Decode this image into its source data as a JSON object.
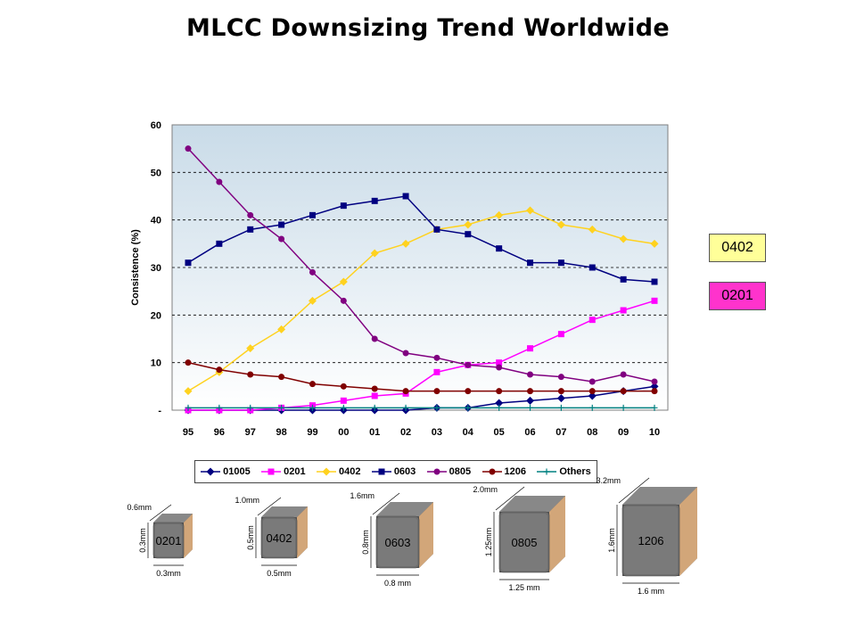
{
  "title": "MLCC Downsizing Trend Worldwide",
  "callouts": {
    "c0402": "0402",
    "c0201": "0201"
  },
  "colors": {
    "c0402": "#ffff99",
    "c0201": "#ff33cc"
  },
  "chart_data": {
    "type": "line",
    "ylabel": "Consistence   (%)",
    "ylim": [
      0,
      60
    ],
    "yticks": [
      "-",
      "10",
      "20",
      "30",
      "40",
      "50",
      "60"
    ],
    "categories": [
      "95",
      "96",
      "97",
      "98",
      "99",
      "00",
      "01",
      "02",
      "03",
      "04",
      "05",
      "06",
      "07",
      "08",
      "09",
      "10"
    ],
    "grid": "horizontal dashed",
    "legend_position": "bottom",
    "series": [
      {
        "name": "01005",
        "color": "#000080",
        "marker": "diamond",
        "values": [
          0,
          0,
          0,
          0,
          0,
          0,
          0,
          0,
          0.5,
          0.5,
          1.5,
          2,
          2.5,
          3,
          4,
          5
        ]
      },
      {
        "name": "0201",
        "color": "#ff00ff",
        "marker": "square",
        "values": [
          0,
          0,
          0,
          0.5,
          1,
          2,
          3,
          3.5,
          8,
          9.5,
          10,
          13,
          16,
          19,
          21,
          23
        ]
      },
      {
        "name": "0402",
        "color": "#ffd21f",
        "marker": "diamond",
        "values": [
          4,
          8,
          13,
          17,
          23,
          27,
          33,
          35,
          38,
          39,
          41,
          42,
          39,
          38,
          36,
          35
        ]
      },
      {
        "name": "0603",
        "color": "#000080",
        "marker": "square",
        "values": [
          31,
          35,
          38,
          39,
          41,
          43,
          44,
          45,
          38,
          37,
          34,
          31,
          31,
          30,
          27.5,
          27
        ]
      },
      {
        "name": "0805",
        "color": "#800080",
        "marker": "circle",
        "values": [
          55,
          48,
          41,
          36,
          29,
          23,
          15,
          12,
          11,
          9.5,
          9,
          7.5,
          7,
          6,
          7.5,
          6
        ]
      },
      {
        "name": "1206",
        "color": "#800000",
        "marker": "circle",
        "values": [
          10,
          8.5,
          7.5,
          7,
          5.5,
          5,
          4.5,
          4,
          4,
          4,
          4,
          4,
          4,
          4,
          4,
          4
        ]
      },
      {
        "name": "Others",
        "color": "#008080",
        "marker": "plus",
        "values": [
          0.5,
          0.5,
          0.5,
          0.5,
          0.5,
          0.5,
          0.5,
          0.5,
          0.5,
          0.5,
          0.5,
          0.5,
          0.5,
          0.5,
          0.5,
          0.5
        ]
      }
    ]
  },
  "chips": [
    {
      "label": "0201",
      "top": "0.6mm",
      "side": "0.3mm",
      "bottom": "0.3mm"
    },
    {
      "label": "0402",
      "top": "1.0mm",
      "side": "0.5mm",
      "bottom": "0.5mm"
    },
    {
      "label": "0603",
      "top": "1.6mm",
      "side": "0.8mm",
      "bottom": "0.8 mm"
    },
    {
      "label": "0805",
      "top": "2.0mm",
      "side": "1.25mm",
      "bottom": "1.25 mm"
    },
    {
      "label": "1206",
      "top": "3.2mm",
      "side": "1.6mm",
      "bottom": "1.6 mm"
    }
  ]
}
